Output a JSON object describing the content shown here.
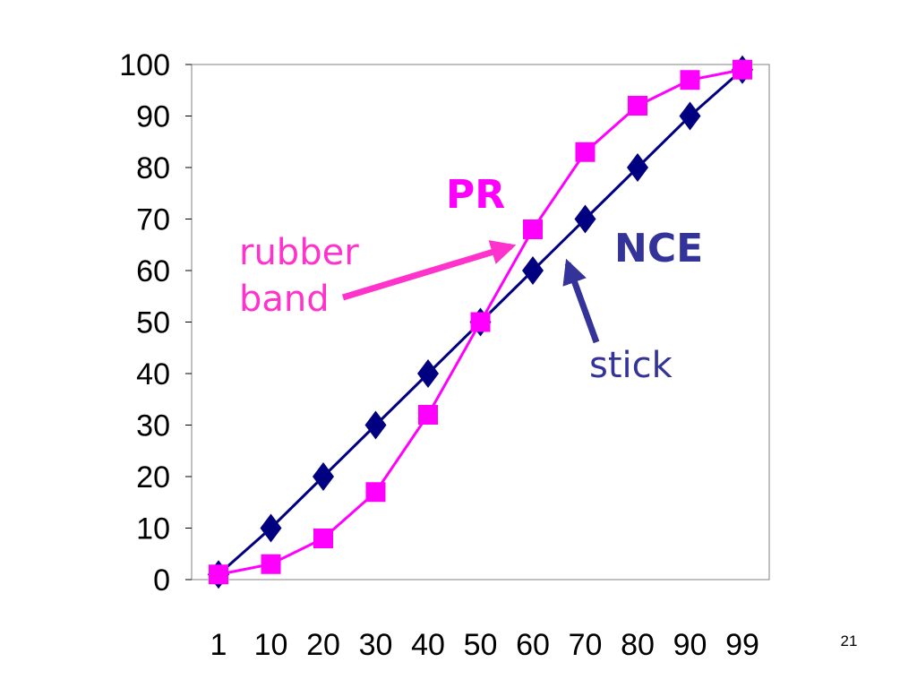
{
  "slide": {
    "page_number": "21"
  },
  "annotations": {
    "pr": "PR",
    "nce": "NCE",
    "rubber_band": "rubber band",
    "stick": "stick"
  },
  "colors": {
    "pr": "#FF00FF",
    "nce": "#000080",
    "nce_text": "#333399",
    "rubber_arrow": "#FF33CC",
    "stick_arrow": "#333399",
    "frame": "#808080"
  },
  "chart_data": {
    "type": "line",
    "title": "",
    "xlabel": "",
    "ylabel": "",
    "categories": [
      "1",
      "10",
      "20",
      "30",
      "40",
      "50",
      "60",
      "70",
      "80",
      "90",
      "99"
    ],
    "ylim": [
      0,
      100
    ],
    "yticks": [
      0,
      10,
      20,
      30,
      40,
      50,
      60,
      70,
      80,
      90,
      100
    ],
    "grid": false,
    "legend": "none",
    "series": [
      {
        "key": "nce",
        "marker": "diamond",
        "color": "#000080",
        "values": [
          1,
          10,
          20,
          30,
          40,
          50,
          60,
          70,
          80,
          90,
          99
        ]
      },
      {
        "key": "pr",
        "marker": "square",
        "color": "#FF00FF",
        "values": [
          1,
          3,
          8,
          17,
          32,
          50,
          68,
          83,
          92,
          97,
          99
        ]
      }
    ]
  }
}
